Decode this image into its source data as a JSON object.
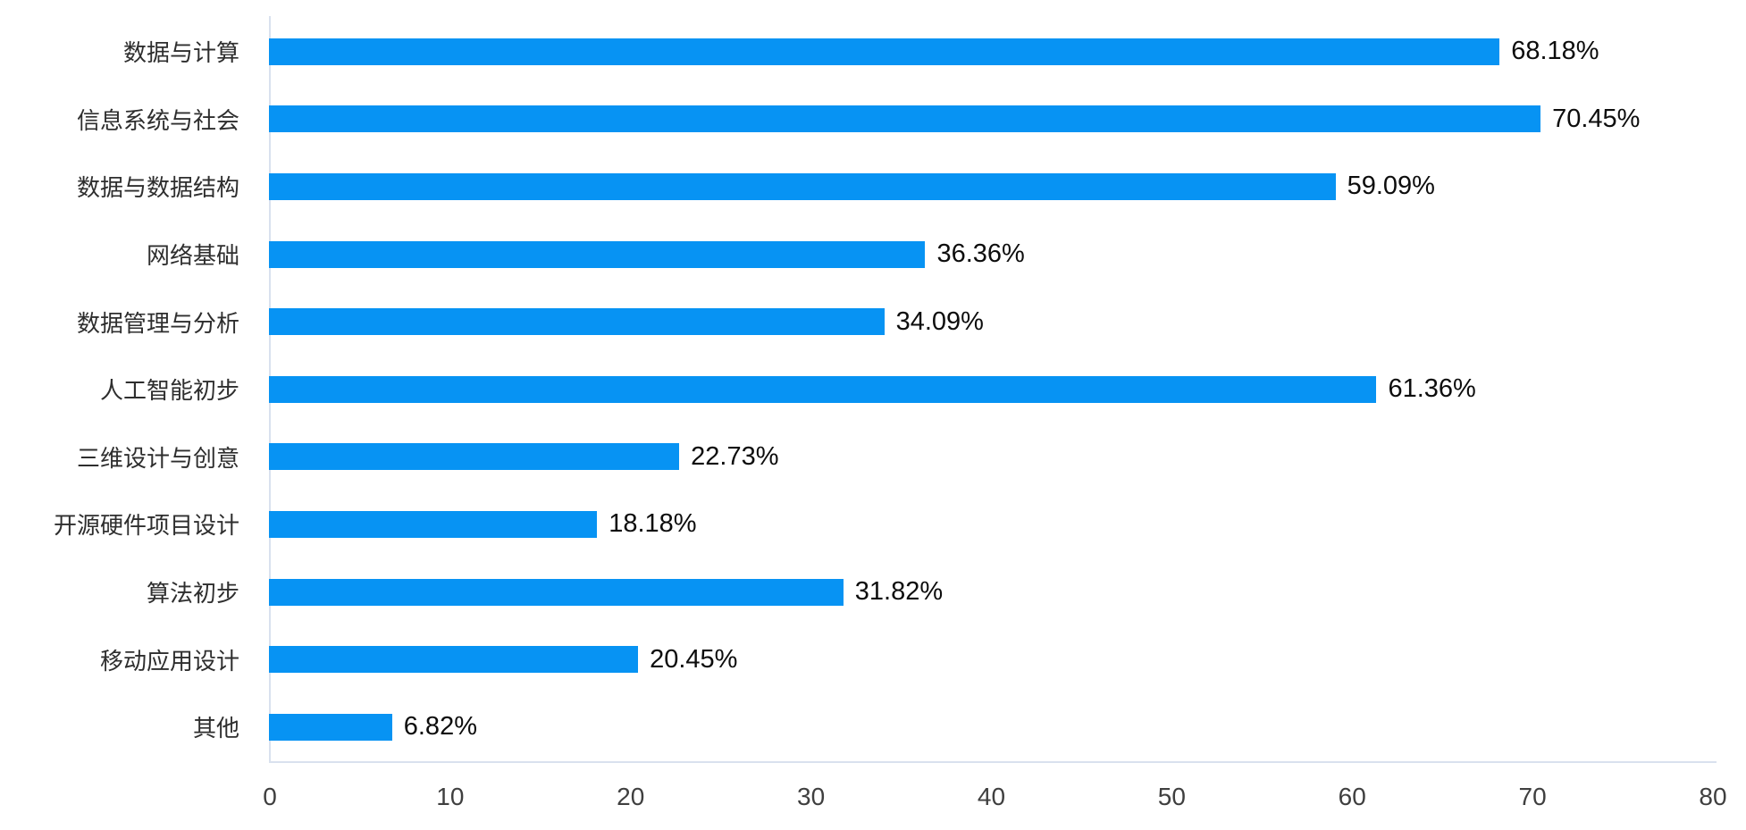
{
  "chart_data": {
    "type": "bar",
    "orientation": "horizontal",
    "title": "",
    "xlabel": "",
    "ylabel": "",
    "categories": [
      "数据与计算",
      "信息系统与社会",
      "数据与数据结构",
      "网络基础",
      "数据管理与分析",
      "人工智能初步",
      "三维设计与创意",
      "开源硬件项目设计",
      "算法初步",
      "移动应用设计",
      "其他"
    ],
    "values": [
      68.18,
      70.45,
      59.09,
      36.36,
      34.09,
      61.36,
      22.73,
      18.18,
      31.82,
      20.45,
      6.82
    ],
    "value_labels": [
      "68.18%",
      "70.45%",
      "59.09%",
      "36.36%",
      "34.09%",
      "61.36%",
      "22.73%",
      "18.18%",
      "31.82%",
      "20.45%",
      "6.82%"
    ],
    "xlim": [
      0,
      80
    ],
    "x_ticks": [
      "0",
      "10",
      "20",
      "30",
      "40",
      "50",
      "60",
      "70",
      "80"
    ],
    "grid": false,
    "legend": false,
    "colors": {
      "bar": "#0793f3",
      "axis_line": "#d9e1ee",
      "tick_label": "#3f3f3f",
      "category_label": "#2e2e2e",
      "value_label": "#0d0d0d",
      "background": "#ffffff"
    }
  }
}
